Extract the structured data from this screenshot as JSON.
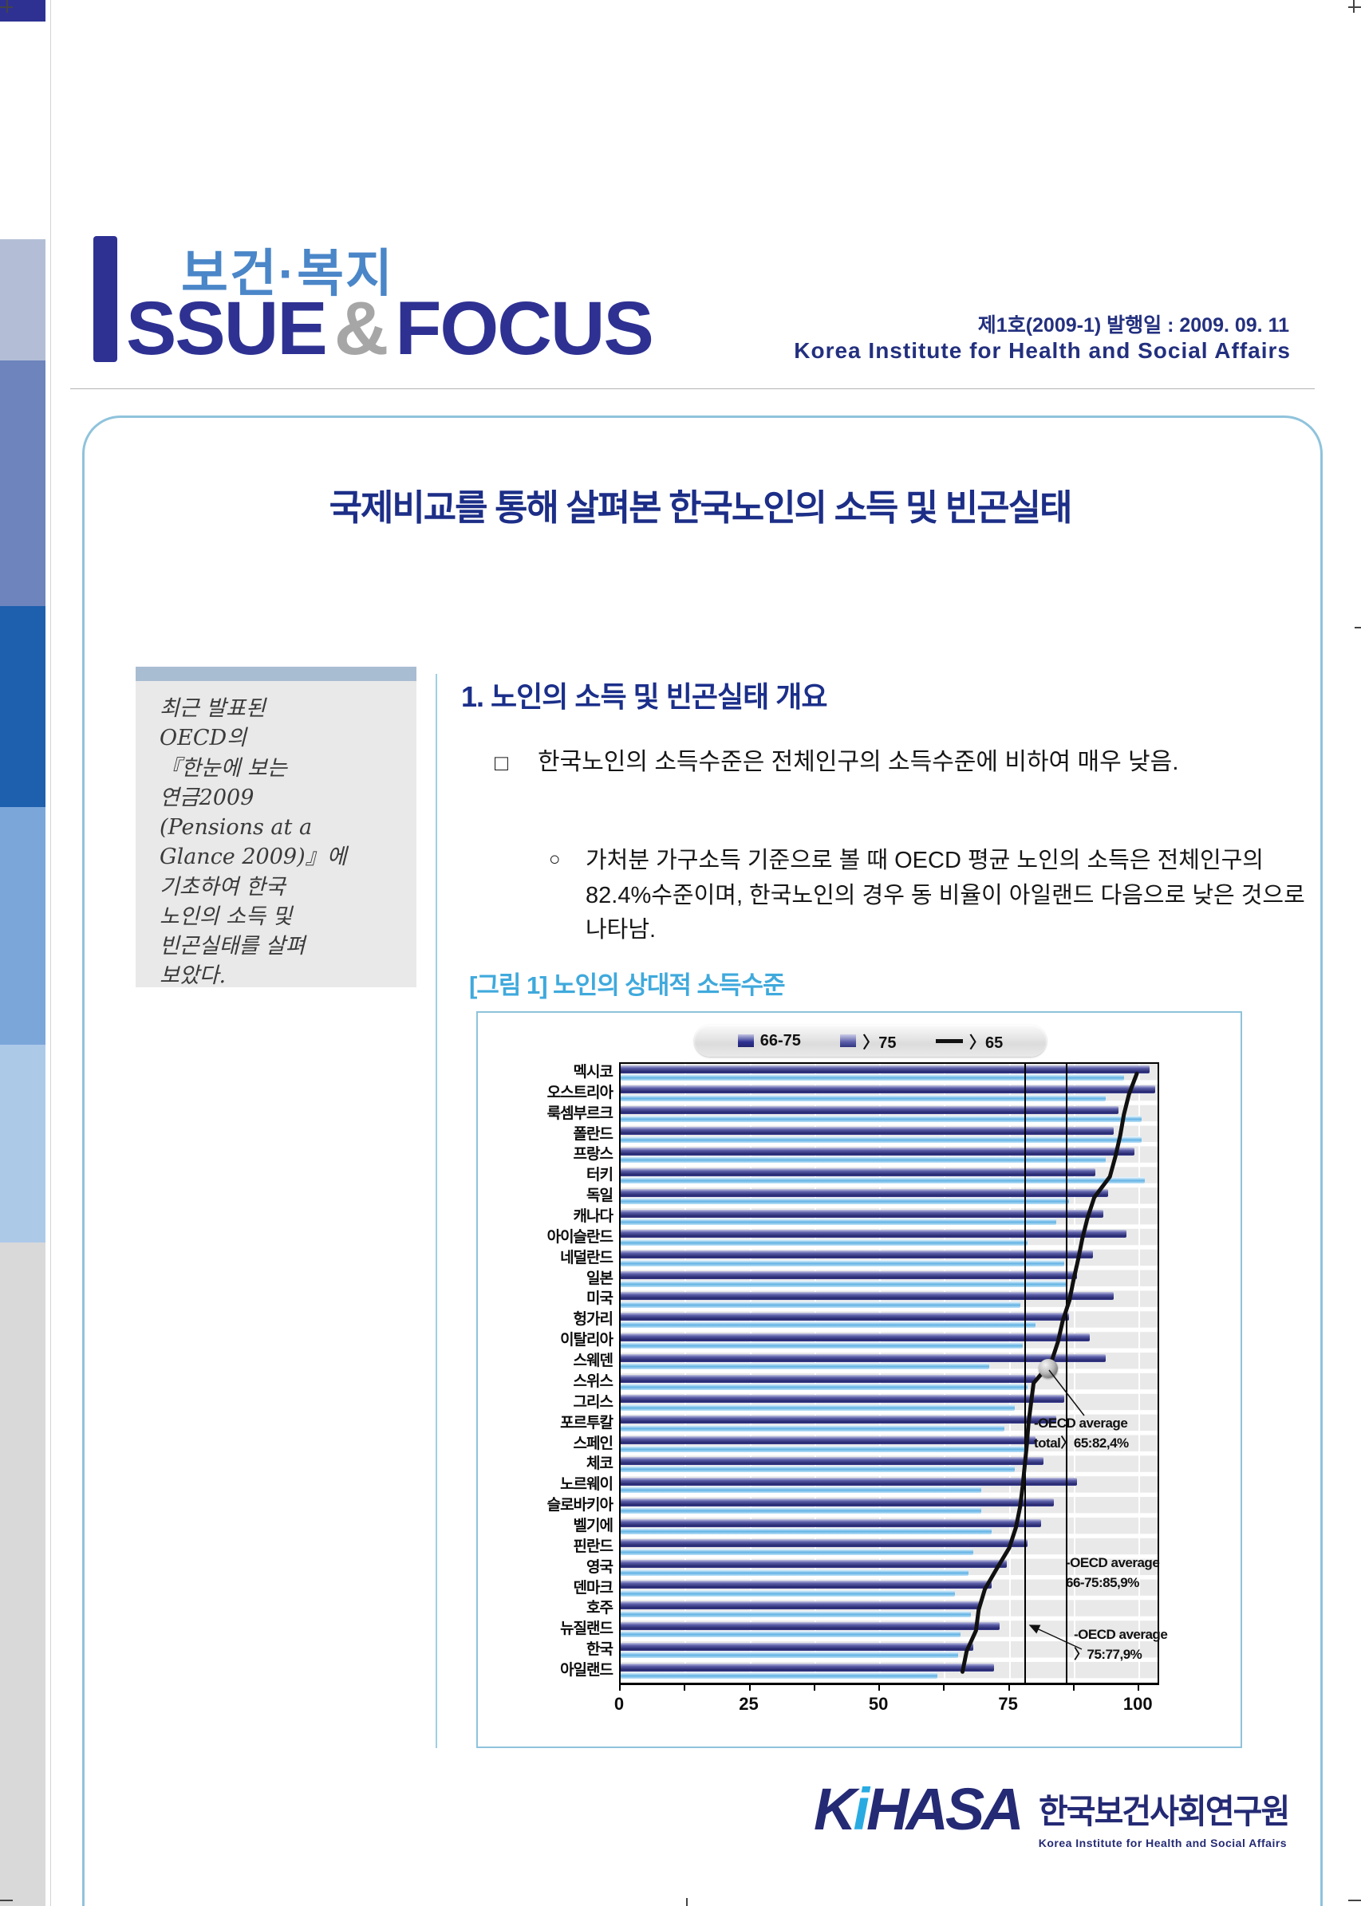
{
  "header": {
    "masthead_kr": "보건·복지",
    "masthead_issue": "ssue",
    "masthead_amp": "&",
    "masthead_focus": "Focus",
    "issue_info": "제1호(2009-1) 발행일 : 2009. 09. 11",
    "org_en": "Korea Institute for Health and Social Affairs"
  },
  "title": "국제비교를 통해 살펴본 한국노인의 소득 및 빈곤실태",
  "sidebar_note": "최근 발표된\nOECD의\n『한눈에 보는\n연금2009\n(Pensions at a\nGlance 2009)』에\n기초하여 한국\n노인의 소득 및\n빈곤실태를 살펴\n보았다.",
  "section1": {
    "heading": "1. 노인의 소득 및 빈곤실태 개요",
    "bullet1_marker": "□",
    "bullet1_text": "한국노인의 소득수준은 전체인구의 소득수준에 비하여 매우 낮음.",
    "sub_marker": "○",
    "sub_text": "가처분 가구소득 기준으로 볼 때 OECD 평균 노인의 소득은 전체인구의 82.4%수준이며, 한국노인의 경우 동 비율이 아일랜드 다음으로 낮은 것으로 나타남."
  },
  "figure_caption": "[그림 1] 노인의 상대적 소득수준",
  "chart_data": {
    "type": "bar",
    "orientation": "horizontal",
    "title": "노인의 상대적 소득수준",
    "xlim": [
      0,
      103.5
    ],
    "x_ticks": [
      0,
      25,
      50,
      75,
      100
    ],
    "minor_tick_step": 12.5,
    "grid": true,
    "legend_position": "top",
    "legend": [
      {
        "label": "66-75",
        "swatch": "square-navy"
      },
      {
        "label": "〉75",
        "swatch": "square-purple"
      },
      {
        "label": "〉65",
        "swatch": "line-black"
      }
    ],
    "categories": [
      "멕시코",
      "오스트리아",
      "룩셈부르크",
      "폴란드",
      "프랑스",
      "터키",
      "독일",
      "캐나다",
      "아이슬란드",
      "네덜란드",
      "일본",
      "미국",
      "헝가리",
      "이탈리아",
      "스웨덴",
      "스위스",
      "그리스",
      "포르투칼",
      "스페인",
      "체코",
      "노르웨이",
      "슬로바키아",
      "벨기에",
      "핀란드",
      "영국",
      "덴마크",
      "호주",
      "뉴질랜드",
      "한국",
      "아일랜드"
    ],
    "series": [
      {
        "name": "66-75",
        "type": "bar",
        "values": [
          102,
          103,
          96,
          95,
          99,
          91.5,
          94,
          93,
          97.5,
          91,
          88,
          95,
          86.5,
          90.5,
          93.5,
          80,
          85.5,
          84,
          80,
          81.5,
          88,
          83.5,
          81,
          78.5,
          74.5,
          71.5,
          69.5,
          73,
          68,
          72
        ]
      },
      {
        "name": "〉75",
        "type": "bar",
        "values": [
          97,
          93.5,
          100.5,
          100.5,
          93.5,
          101,
          86.5,
          84,
          78.5,
          85.5,
          86,
          77,
          80,
          77.5,
          71,
          78.5,
          76,
          74,
          78,
          76,
          69.5,
          69.5,
          71.5,
          68,
          67,
          64.5,
          67.5,
          65.5,
          65,
          61
        ]
      },
      {
        "name": "〉65",
        "type": "line",
        "values": [
          99.5,
          98,
          97,
          96.3,
          95.4,
          94.3,
          91.3,
          90,
          89,
          88.2,
          87.3,
          86.5,
          85.2,
          84.3,
          83,
          79.6,
          79.1,
          78.6,
          78.3,
          77.9,
          77.5,
          77,
          76.2,
          74.9,
          72.5,
          70.2,
          69,
          68.5,
          66.7,
          65.9
        ]
      }
    ],
    "reference_lines": [
      {
        "value": 77.9,
        "label": "OECD average 〉75:77,9%"
      },
      {
        "value": 85.9,
        "label": "OECD average 66-75:85,9%"
      }
    ],
    "marker": {
      "value": 82.4,
      "between_categories": [
        "스웨덴",
        "스위스"
      ],
      "label": "OECD average total〉65:82,4%"
    },
    "annotations": [
      {
        "id": "avg-total",
        "text": "-OECD average\ntotal〉65:82,4%"
      },
      {
        "id": "avg-66-75",
        "text": "-OECD average\n66-75:85,9%"
      },
      {
        "id": "avg-over75",
        "text": "-OECD average\n〉75:77,9%"
      }
    ],
    "colors": {
      "bar_66_75": "#2e3192",
      "bar_over75": "#62b2e4",
      "line_over65": "#111111"
    }
  },
  "footer": {
    "logo_k": "K",
    "logo_i": "i",
    "logo_rest": "HASA",
    "org_kr": "한국보건사회연구원",
    "org_en": "Korea Institute for Health and Social Affairs"
  }
}
